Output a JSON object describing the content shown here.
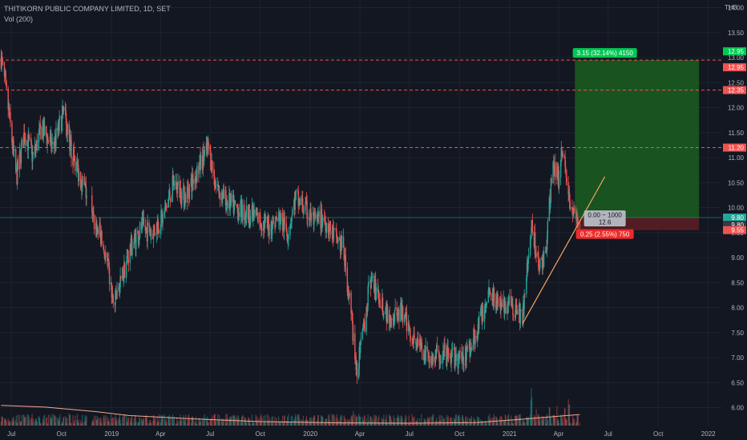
{
  "header": {
    "symbol_line": "THITIKORN PUBLIC COMPANY LIMITED, 1D, SET",
    "volume_line": "Vol (200)",
    "currency": "THB"
  },
  "colors": {
    "background": "#131722",
    "grid": "#1e222d",
    "up": "#26a69a",
    "down": "#ef5350",
    "axis_text": "#b2b5be",
    "profit_zone": "#1b5e20",
    "loss_zone": "#5d1f23",
    "trendline": "#f4a460",
    "volume_ma": "#f4a990"
  },
  "chart_data": {
    "type": "candlestick",
    "title": "THITIKORN PUBLIC COMPANY LIMITED, 1D, SET",
    "ylabel": "THB",
    "ylim": [
      5.75,
      14.1
    ],
    "xlim": [
      "2018-06-10",
      "2022-01-25"
    ],
    "y_ticks": [
      "14.00",
      "13.50",
      "13.00",
      "12.50",
      "12.00",
      "11.50",
      "11.00",
      "10.50",
      "10.00",
      "9.50",
      "9.00",
      "8.50",
      "8.00",
      "7.50",
      "7.00",
      "6.50",
      "6.00"
    ],
    "x_ticks": [
      {
        "label": "Jul",
        "date": "2018-07-01"
      },
      {
        "label": "Oct",
        "date": "2018-10-01"
      },
      {
        "label": "2019",
        "date": "2019-01-01"
      },
      {
        "label": "Apr",
        "date": "2019-04-01"
      },
      {
        "label": "Jul",
        "date": "2019-07-01"
      },
      {
        "label": "Oct",
        "date": "2019-10-01"
      },
      {
        "label": "2020",
        "date": "2020-01-01"
      },
      {
        "label": "Apr",
        "date": "2020-04-01"
      },
      {
        "label": "Jul",
        "date": "2020-07-01"
      },
      {
        "label": "Oct",
        "date": "2020-10-01"
      },
      {
        "label": "2021",
        "date": "2021-01-01"
      },
      {
        "label": "Apr",
        "date": "2021-04-01"
      },
      {
        "label": "Jul",
        "date": "2021-07-01"
      },
      {
        "label": "Oct",
        "date": "2021-10-01"
      },
      {
        "label": "2022",
        "date": "2022-01-01"
      }
    ],
    "price_path": [
      [
        "2018-06-12",
        13.0
      ],
      [
        "2018-06-25",
        12.0
      ],
      [
        "2018-07-10",
        10.6
      ],
      [
        "2018-07-25",
        11.5
      ],
      [
        "2018-08-10",
        11.0
      ],
      [
        "2018-08-25",
        11.6
      ],
      [
        "2018-09-15",
        11.2
      ],
      [
        "2018-10-05",
        11.9
      ],
      [
        "2018-10-20",
        11.1
      ],
      [
        "2018-11-05",
        10.6
      ],
      [
        "2018-11-15",
        10.3
      ],
      [
        "2018-11-25",
        9.8
      ],
      [
        "2018-12-10",
        9.5
      ],
      [
        "2018-12-25",
        8.8
      ],
      [
        "2019-01-05",
        8.0
      ],
      [
        "2019-01-20",
        8.6
      ],
      [
        "2019-02-05",
        9.2
      ],
      [
        "2019-02-25",
        9.6
      ],
      [
        "2019-03-15",
        9.5
      ],
      [
        "2019-04-05",
        9.8
      ],
      [
        "2019-04-25",
        10.5
      ],
      [
        "2019-05-15",
        10.2
      ],
      [
        "2019-06-10",
        10.8
      ],
      [
        "2019-06-28",
        11.2
      ],
      [
        "2019-07-10",
        10.5
      ],
      [
        "2019-07-25",
        10.2
      ],
      [
        "2019-08-15",
        10.0
      ],
      [
        "2019-09-05",
        9.9
      ],
      [
        "2019-09-25",
        9.8
      ],
      [
        "2019-10-15",
        9.6
      ],
      [
        "2019-11-05",
        9.8
      ],
      [
        "2019-11-20",
        9.5
      ],
      [
        "2019-12-05",
        10.2
      ],
      [
        "2019-12-20",
        10.0
      ],
      [
        "2020-01-10",
        9.7
      ],
      [
        "2020-01-25",
        9.8
      ],
      [
        "2020-02-10",
        9.5
      ],
      [
        "2020-03-01",
        9.2
      ],
      [
        "2020-03-15",
        8.0
      ],
      [
        "2020-03-25",
        6.7
      ],
      [
        "2020-04-05",
        7.3
      ],
      [
        "2020-04-20",
        8.6
      ],
      [
        "2020-05-05",
        8.2
      ],
      [
        "2020-05-25",
        7.8
      ],
      [
        "2020-06-15",
        7.9
      ],
      [
        "2020-07-10",
        7.4
      ],
      [
        "2020-08-01",
        7.0
      ],
      [
        "2020-09-01",
        7.05
      ],
      [
        "2020-10-01",
        6.95
      ],
      [
        "2020-10-20",
        7.2
      ],
      [
        "2020-11-10",
        7.8
      ],
      [
        "2020-11-25",
        8.4
      ],
      [
        "2020-12-15",
        8.0
      ],
      [
        "2021-01-05",
        8.1
      ],
      [
        "2021-01-25",
        7.8
      ],
      [
        "2021-02-10",
        9.6
      ],
      [
        "2021-02-25",
        8.8
      ],
      [
        "2021-03-10",
        9.2
      ],
      [
        "2021-03-20",
        10.8
      ],
      [
        "2021-04-01",
        10.6
      ],
      [
        "2021-04-10",
        11.3
      ],
      [
        "2021-04-20",
        10.2
      ],
      [
        "2021-04-28",
        9.8
      ],
      [
        "2021-05-10",
        9.75
      ]
    ],
    "volume_ma_path": [
      [
        "2018-06-12",
        0.6
      ],
      [
        "2018-09-01",
        0.55
      ],
      [
        "2018-12-01",
        0.42
      ],
      [
        "2019-02-01",
        0.3
      ],
      [
        "2019-06-01",
        0.2
      ],
      [
        "2019-10-01",
        0.12
      ],
      [
        "2020-03-01",
        0.08
      ],
      [
        "2020-07-01",
        0.07
      ],
      [
        "2020-11-01",
        0.09
      ],
      [
        "2021-01-15",
        0.18
      ],
      [
        "2021-04-01",
        0.28
      ],
      [
        "2021-05-10",
        0.33
      ]
    ],
    "volume_spikes": [
      [
        "2018-10-15",
        1.2
      ],
      [
        "2019-01-15",
        0.9
      ],
      [
        "2020-03-20",
        1.4
      ],
      [
        "2021-02-10",
        3.5
      ],
      [
        "2021-02-20",
        2.2
      ],
      [
        "2021-03-15",
        2.0
      ],
      [
        "2021-03-28",
        2.6
      ],
      [
        "2021-04-12",
        1.8
      ],
      [
        "2021-04-20",
        2.5
      ],
      [
        "2021-01-20",
        1.1
      ]
    ],
    "trendline": {
      "start": [
        "2021-01-25",
        7.68
      ],
      "end": [
        "2021-06-25",
        10.62
      ]
    },
    "horizontal_levels": [
      12.95,
      12.35,
      11.2
    ],
    "current_price": 9.8,
    "long_position": {
      "start": "2021-05-01",
      "end": "2021-12-15",
      "entry": 9.8,
      "target": 12.95,
      "stop": 9.55,
      "target_label": "3.15 (32.14%) 4150",
      "entry_label_line1": "0.00 ~ 1000",
      "entry_label_line2": "12.6",
      "stop_label": "0.25 (2.55%) 750"
    },
    "price_labels": [
      {
        "text": "12.95",
        "value": 12.95,
        "color": "#00c853"
      },
      {
        "text": "12.95",
        "value": 12.95,
        "color": "#ef5350"
      },
      {
        "text": "12.35",
        "value": 12.35,
        "color": "#ef5350"
      },
      {
        "text": "11.20",
        "value": 11.2,
        "color": "#ef5350"
      },
      {
        "text": "9.80",
        "value": 9.8,
        "color": "#26a69a"
      },
      {
        "text": "9.80",
        "value": 9.8,
        "color": "#363a45"
      },
      {
        "text": "9.55",
        "value": 9.55,
        "color": "#ef5350"
      }
    ]
  }
}
